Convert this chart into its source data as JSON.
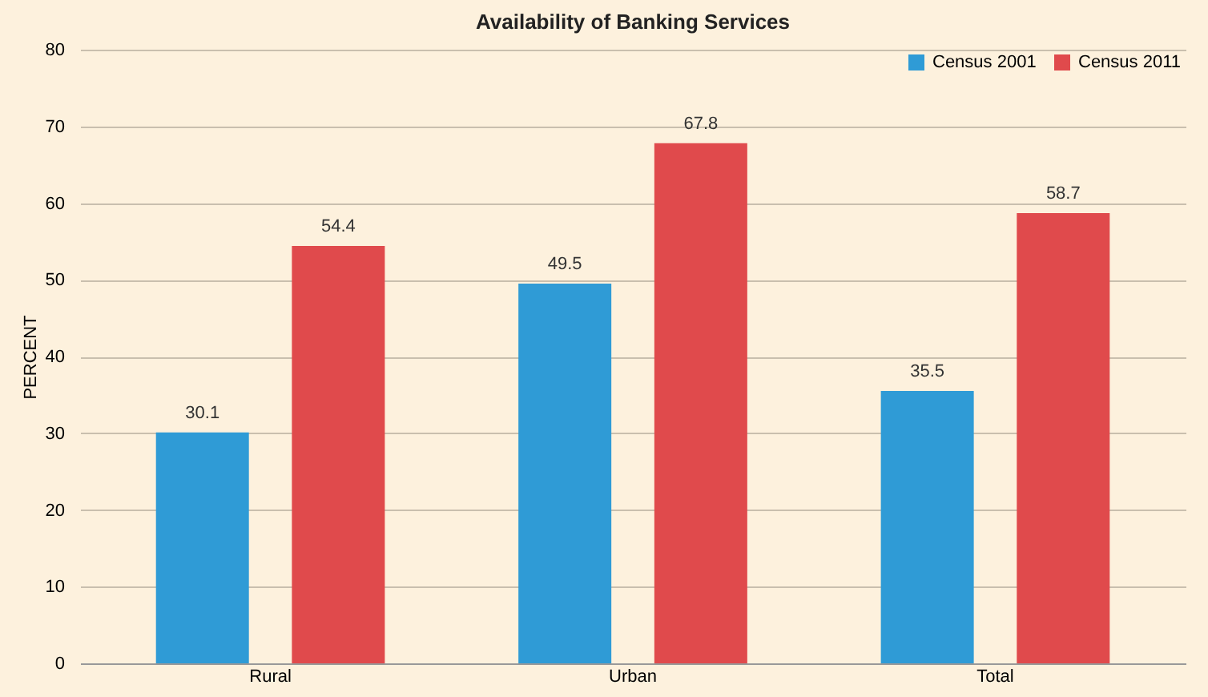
{
  "chart_data": {
    "type": "bar",
    "title": "Availability of Banking Services",
    "ylabel": "PERCENT",
    "categories": [
      "Rural",
      "Urban",
      "Total"
    ],
    "series": [
      {
        "name": "Census 2001",
        "color": "#2f9bd6",
        "values": [
          30.1,
          49.5,
          35.5
        ]
      },
      {
        "name": "Census 2011",
        "color": "#e04a4c",
        "values": [
          54.4,
          67.8,
          58.7
        ]
      }
    ],
    "ylim": [
      0,
      80
    ],
    "yticks": [
      0,
      10,
      20,
      30,
      40,
      50,
      60,
      70,
      80
    ],
    "grid": "y",
    "legend": "top right",
    "data_labels": true
  }
}
